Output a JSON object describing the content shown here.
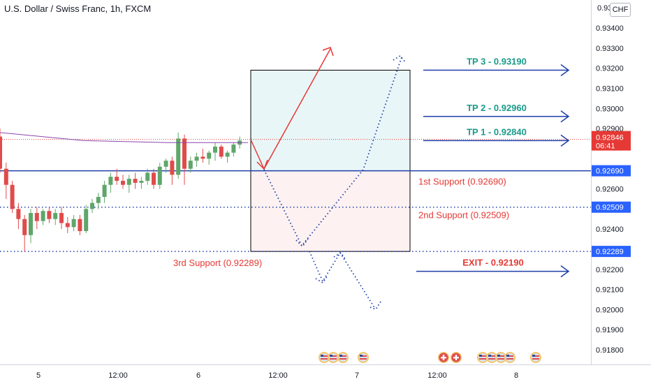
{
  "header": {
    "title": "U.S. Dollar / Swiss Franc, 1h, FXCM",
    "currency": "CHF"
  },
  "colors": {
    "up": "#5fa66a",
    "down": "#e04b4b",
    "blue_line": "#1f3fa8",
    "label_bg": "#2962ff",
    "red_label": "#e53935",
    "teal_label": "#1a9a8a",
    "ma": "#8e44ad",
    "zone_upper": "#e9f6f8",
    "zone_lower": "#fdf1f1"
  },
  "chart_data": {
    "type": "candlestick",
    "symbol": "U.S. Dollar / Swiss Franc",
    "timeframe": "1h",
    "source": "FXCM",
    "ylim": [
      0.917,
      0.9355
    ],
    "y_ticks": [
      0.918,
      0.919,
      0.92,
      0.921,
      0.922,
      0.924,
      0.926,
      0.929,
      0.93,
      0.931,
      0.932,
      0.933,
      0.934
    ],
    "y_tick_labels": [
      "0.91800",
      "0.91900",
      "0.92000",
      "0.92100",
      "0.92200",
      "0.92400",
      "0.92600",
      "0.92900",
      "0.93000",
      "0.93100",
      "0.93200",
      "0.93300",
      "0.93400"
    ],
    "top_tick_partial": "0.93",
    "x_labels": [
      "5",
      "12:00",
      "6",
      "12:00",
      "7",
      "12:00",
      "8"
    ],
    "candles": [
      {
        "o": 0.9286,
        "h": 0.929,
        "l": 0.9268,
        "c": 0.927
      },
      {
        "o": 0.927,
        "h": 0.9273,
        "l": 0.9255,
        "c": 0.9262
      },
      {
        "o": 0.9262,
        "h": 0.9264,
        "l": 0.9248,
        "c": 0.925
      },
      {
        "o": 0.925,
        "h": 0.9253,
        "l": 0.924,
        "c": 0.9245
      },
      {
        "o": 0.9245,
        "h": 0.9247,
        "l": 0.9229,
        "c": 0.9237
      },
      {
        "o": 0.9237,
        "h": 0.925,
        "l": 0.9233,
        "c": 0.9248
      },
      {
        "o": 0.9248,
        "h": 0.9251,
        "l": 0.924,
        "c": 0.9244
      },
      {
        "o": 0.9244,
        "h": 0.925,
        "l": 0.9242,
        "c": 0.9249
      },
      {
        "o": 0.9249,
        "h": 0.9251,
        "l": 0.9243,
        "c": 0.9245
      },
      {
        "o": 0.9245,
        "h": 0.925,
        "l": 0.9242,
        "c": 0.9248
      },
      {
        "o": 0.9248,
        "h": 0.9251,
        "l": 0.924,
        "c": 0.9243
      },
      {
        "o": 0.9243,
        "h": 0.9246,
        "l": 0.9238,
        "c": 0.9241
      },
      {
        "o": 0.9241,
        "h": 0.9247,
        "l": 0.9239,
        "c": 0.9245
      },
      {
        "o": 0.9245,
        "h": 0.9247,
        "l": 0.9237,
        "c": 0.9239
      },
      {
        "o": 0.9239,
        "h": 0.9252,
        "l": 0.9238,
        "c": 0.925
      },
      {
        "o": 0.925,
        "h": 0.9255,
        "l": 0.9248,
        "c": 0.9253
      },
      {
        "o": 0.9253,
        "h": 0.9258,
        "l": 0.925,
        "c": 0.9256
      },
      {
        "o": 0.9256,
        "h": 0.9264,
        "l": 0.9253,
        "c": 0.9262
      },
      {
        "o": 0.9262,
        "h": 0.9268,
        "l": 0.9258,
        "c": 0.9266
      },
      {
        "o": 0.9266,
        "h": 0.927,
        "l": 0.9262,
        "c": 0.9264
      },
      {
        "o": 0.9264,
        "h": 0.9267,
        "l": 0.926,
        "c": 0.9262
      },
      {
        "o": 0.9262,
        "h": 0.9267,
        "l": 0.9258,
        "c": 0.9265
      },
      {
        "o": 0.9265,
        "h": 0.9268,
        "l": 0.926,
        "c": 0.9263
      },
      {
        "o": 0.9263,
        "h": 0.9266,
        "l": 0.926,
        "c": 0.9264
      },
      {
        "o": 0.9264,
        "h": 0.927,
        "l": 0.9262,
        "c": 0.9268
      },
      {
        "o": 0.9268,
        "h": 0.927,
        "l": 0.926,
        "c": 0.9262
      },
      {
        "o": 0.9262,
        "h": 0.9273,
        "l": 0.926,
        "c": 0.9271
      },
      {
        "o": 0.9271,
        "h": 0.9275,
        "l": 0.9268,
        "c": 0.9274
      },
      {
        "o": 0.9274,
        "h": 0.9276,
        "l": 0.9262,
        "c": 0.9267
      },
      {
        "o": 0.9267,
        "h": 0.9288,
        "l": 0.9265,
        "c": 0.9285
      },
      {
        "o": 0.9285,
        "h": 0.9287,
        "l": 0.9262,
        "c": 0.927
      },
      {
        "o": 0.927,
        "h": 0.9276,
        "l": 0.9268,
        "c": 0.9274
      },
      {
        "o": 0.9274,
        "h": 0.9278,
        "l": 0.9271,
        "c": 0.9276
      },
      {
        "o": 0.9276,
        "h": 0.928,
        "l": 0.9273,
        "c": 0.9275
      },
      {
        "o": 0.9275,
        "h": 0.9279,
        "l": 0.9272,
        "c": 0.9278
      },
      {
        "o": 0.9278,
        "h": 0.9283,
        "l": 0.9274,
        "c": 0.9281
      },
      {
        "o": 0.9281,
        "h": 0.9282,
        "l": 0.9275,
        "c": 0.9276
      },
      {
        "o": 0.9276,
        "h": 0.9279,
        "l": 0.9273,
        "c": 0.9278
      },
      {
        "o": 0.9278,
        "h": 0.9283,
        "l": 0.9276,
        "c": 0.9282
      },
      {
        "o": 0.9282,
        "h": 0.9286,
        "l": 0.928,
        "c": 0.9284
      }
    ],
    "moving_average": [
      0.9288,
      0.9284,
      0.9283,
      0.9283
    ],
    "price_labels": [
      {
        "value": 0.92846,
        "text": "0.92846",
        "countdown": "06:41",
        "color": "#e53935"
      },
      {
        "value": 0.9269,
        "text": "0.92690",
        "color": "#2962ff"
      },
      {
        "value": 0.92509,
        "text": "0.92509",
        "color": "#2962ff"
      },
      {
        "value": 0.92289,
        "text": "0.92289",
        "color": "#2962ff"
      }
    ],
    "horizontal_lines": [
      {
        "value": 0.9269,
        "style": "solid"
      },
      {
        "value": 0.92509,
        "style": "dotted"
      },
      {
        "value": 0.92289,
        "style": "dotted"
      },
      {
        "value": 0.92846,
        "style": "dotted-red"
      }
    ],
    "zones": {
      "upper": [
        0.9269,
        0.9319
      ],
      "lower": [
        0.92289,
        0.9269
      ]
    },
    "annotations": {
      "support1": "1st Support (0.92690)",
      "support2": "2nd Support (0.92509)",
      "support3": "3rd Support (0.92289)",
      "tp3": "TP 3 - 0.93190",
      "tp2": "TP 2 - 0.92960",
      "tp1": "TP 1 - 0.92840",
      "exit": "EXIT - 0.92190"
    },
    "target_levels": {
      "tp3": 0.9319,
      "tp2": 0.9296,
      "tp1": 0.9284,
      "exit": 0.9219
    }
  }
}
